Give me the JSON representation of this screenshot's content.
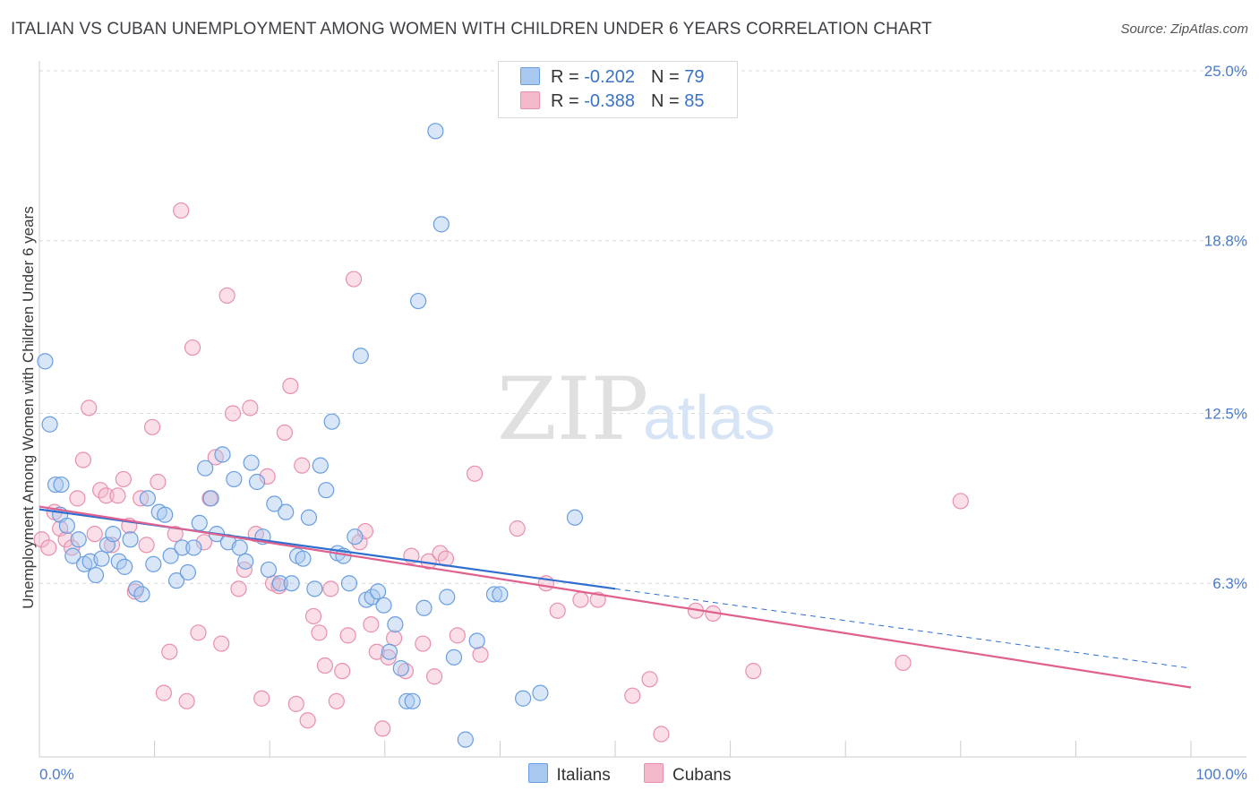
{
  "title": "ITALIAN VS CUBAN UNEMPLOYMENT AMONG WOMEN WITH CHILDREN UNDER 6 YEARS CORRELATION CHART",
  "source": "Source: ZipAtlas.com",
  "watermark": {
    "zip": "ZIP",
    "atlas": "atlas"
  },
  "legend": {
    "rows": [
      {
        "r_label": "R = ",
        "r_value": "-0.202",
        "n_label": "N = ",
        "n_value": "79"
      },
      {
        "r_label": "R = ",
        "r_value": "-0.388",
        "n_label": "N = ",
        "n_value": "85"
      }
    ]
  },
  "bottom_legend": [
    "Italians",
    "Cubans"
  ],
  "colors": {
    "italians_fill": "#a8c8f0",
    "italians_stroke": "#6a9ee0",
    "italians_line": "#2f6fd0",
    "cubans_fill": "#f4b8cb",
    "cubans_stroke": "#e890ad",
    "cubans_line": "#e0608e",
    "tick": "#4a7cc9",
    "grid": "#d9d9d9"
  },
  "chart_data": {
    "type": "scatter",
    "title": "ITALIAN VS CUBAN UNEMPLOYMENT AMONG WOMEN WITH CHILDREN UNDER 6 YEARS CORRELATION CHART",
    "xlabel": "",
    "ylabel": "Unemployment Among Women with Children Under 6 years",
    "xlim": [
      0,
      100
    ],
    "ylim": [
      0,
      25
    ],
    "x_tick_labels": [
      "0.0%",
      "100.0%"
    ],
    "y_ticks": [
      6.3,
      12.5,
      18.8,
      25.0
    ],
    "y_tick_labels": [
      "6.3%",
      "12.5%",
      "18.8%",
      "25.0%"
    ],
    "grid": "horizontal dashed",
    "legend_position": "top-center",
    "series": [
      {
        "name": "Italians",
        "points": [
          [
            0.5,
            14.4
          ],
          [
            0.9,
            12.1
          ],
          [
            1.4,
            9.9
          ],
          [
            1.8,
            8.8
          ],
          [
            2.4,
            8.4
          ],
          [
            2.9,
            7.3
          ],
          [
            3.4,
            7.9
          ],
          [
            3.9,
            7.0
          ],
          [
            4.4,
            7.1
          ],
          [
            4.9,
            6.6
          ],
          [
            5.4,
            7.2
          ],
          [
            5.9,
            7.7
          ],
          [
            6.4,
            8.1
          ],
          [
            6.9,
            7.1
          ],
          [
            7.4,
            6.9
          ],
          [
            7.9,
            7.9
          ],
          [
            8.4,
            6.1
          ],
          [
            8.9,
            5.9
          ],
          [
            9.4,
            9.4
          ],
          [
            9.9,
            7.0
          ],
          [
            10.4,
            8.9
          ],
          [
            10.9,
            8.8
          ],
          [
            11.4,
            7.3
          ],
          [
            11.9,
            6.4
          ],
          [
            12.4,
            7.6
          ],
          [
            12.9,
            6.7
          ],
          [
            13.4,
            7.6
          ],
          [
            13.9,
            8.5
          ],
          [
            14.4,
            10.5
          ],
          [
            14.9,
            9.4
          ],
          [
            15.4,
            8.1
          ],
          [
            15.9,
            11.0
          ],
          [
            16.4,
            7.8
          ],
          [
            16.9,
            10.1
          ],
          [
            17.4,
            7.6
          ],
          [
            17.9,
            7.1
          ],
          [
            18.4,
            10.7
          ],
          [
            18.9,
            10.0
          ],
          [
            19.4,
            8.0
          ],
          [
            19.9,
            6.8
          ],
          [
            20.4,
            9.2
          ],
          [
            20.9,
            6.3
          ],
          [
            21.4,
            8.9
          ],
          [
            21.9,
            6.3
          ],
          [
            22.4,
            7.3
          ],
          [
            22.9,
            7.2
          ],
          [
            23.4,
            8.7
          ],
          [
            23.9,
            6.1
          ],
          [
            24.4,
            10.6
          ],
          [
            24.9,
            9.7
          ],
          [
            25.4,
            12.2
          ],
          [
            25.9,
            7.4
          ],
          [
            26.4,
            7.3
          ],
          [
            26.9,
            6.3
          ],
          [
            27.4,
            8.0
          ],
          [
            27.9,
            14.6
          ],
          [
            28.4,
            5.7
          ],
          [
            28.9,
            5.8
          ],
          [
            29.4,
            6.0
          ],
          [
            29.9,
            5.5
          ],
          [
            30.4,
            3.8
          ],
          [
            30.9,
            4.8
          ],
          [
            31.4,
            3.2
          ],
          [
            31.9,
            2.0
          ],
          [
            32.4,
            2.0
          ],
          [
            32.9,
            16.6
          ],
          [
            33.4,
            5.4
          ],
          [
            34.4,
            22.8
          ],
          [
            34.9,
            19.4
          ],
          [
            35.4,
            5.8
          ],
          [
            36.0,
            3.6
          ],
          [
            37.0,
            0.6
          ],
          [
            38.0,
            4.2
          ],
          [
            39.5,
            5.9
          ],
          [
            40.0,
            5.9
          ],
          [
            42.0,
            2.1
          ],
          [
            43.5,
            2.3
          ],
          [
            46.5,
            8.7
          ],
          [
            1.9,
            9.9
          ]
        ],
        "trend": {
          "x": [
            0,
            50
          ],
          "y": [
            9.0,
            6.1
          ]
        },
        "trend_extension": {
          "x": [
            50,
            100
          ],
          "y": [
            6.1,
            3.2
          ]
        }
      },
      {
        "name": "Cubans",
        "points": [
          [
            0.2,
            7.9
          ],
          [
            0.8,
            7.6
          ],
          [
            1.3,
            8.9
          ],
          [
            1.8,
            8.3
          ],
          [
            2.3,
            7.9
          ],
          [
            2.8,
            7.6
          ],
          [
            3.3,
            9.4
          ],
          [
            3.8,
            10.8
          ],
          [
            4.3,
            12.7
          ],
          [
            4.8,
            8.1
          ],
          [
            5.3,
            9.7
          ],
          [
            5.8,
            9.5
          ],
          [
            6.3,
            7.7
          ],
          [
            6.8,
            9.5
          ],
          [
            7.3,
            10.1
          ],
          [
            7.8,
            8.4
          ],
          [
            8.3,
            6.0
          ],
          [
            8.8,
            9.4
          ],
          [
            9.3,
            7.7
          ],
          [
            9.8,
            12.0
          ],
          [
            10.3,
            10.0
          ],
          [
            10.8,
            2.3
          ],
          [
            11.3,
            3.8
          ],
          [
            11.8,
            8.1
          ],
          [
            12.3,
            19.9
          ],
          [
            12.8,
            2.0
          ],
          [
            13.3,
            14.9
          ],
          [
            13.8,
            4.5
          ],
          [
            14.3,
            7.8
          ],
          [
            14.8,
            9.4
          ],
          [
            15.3,
            10.9
          ],
          [
            15.8,
            4.1
          ],
          [
            16.3,
            16.8
          ],
          [
            16.8,
            12.5
          ],
          [
            17.3,
            6.1
          ],
          [
            17.8,
            6.8
          ],
          [
            18.3,
            12.7
          ],
          [
            18.8,
            8.1
          ],
          [
            19.3,
            2.1
          ],
          [
            19.8,
            10.2
          ],
          [
            20.3,
            6.3
          ],
          [
            20.8,
            6.2
          ],
          [
            21.3,
            11.8
          ],
          [
            21.8,
            13.5
          ],
          [
            22.3,
            1.9
          ],
          [
            22.8,
            10.6
          ],
          [
            23.3,
            1.3
          ],
          [
            23.8,
            5.1
          ],
          [
            24.3,
            4.5
          ],
          [
            24.8,
            3.3
          ],
          [
            25.3,
            6.1
          ],
          [
            25.8,
            2.0
          ],
          [
            26.3,
            3.1
          ],
          [
            26.8,
            4.4
          ],
          [
            27.3,
            17.4
          ],
          [
            27.8,
            7.8
          ],
          [
            28.3,
            8.2
          ],
          [
            28.8,
            4.8
          ],
          [
            29.3,
            3.8
          ],
          [
            29.8,
            1.0
          ],
          [
            30.3,
            3.6
          ],
          [
            30.8,
            4.3
          ],
          [
            31.8,
            3.1
          ],
          [
            32.3,
            7.3
          ],
          [
            33.3,
            4.1
          ],
          [
            33.8,
            7.1
          ],
          [
            34.3,
            2.9
          ],
          [
            34.8,
            7.4
          ],
          [
            35.3,
            7.2
          ],
          [
            36.3,
            4.4
          ],
          [
            37.8,
            10.3
          ],
          [
            38.3,
            3.7
          ],
          [
            41.5,
            8.3
          ],
          [
            44.0,
            6.3
          ],
          [
            45.0,
            5.3
          ],
          [
            47.0,
            5.7
          ],
          [
            48.5,
            5.7
          ],
          [
            51.5,
            2.2
          ],
          [
            53.0,
            2.8
          ],
          [
            54.0,
            0.8
          ],
          [
            57.0,
            5.3
          ],
          [
            58.5,
            5.2
          ],
          [
            62.0,
            3.1
          ],
          [
            75.0,
            3.4
          ],
          [
            80.0,
            9.3
          ]
        ],
        "trend": {
          "x": [
            0,
            100
          ],
          "y": [
            9.1,
            2.5
          ]
        }
      }
    ]
  }
}
